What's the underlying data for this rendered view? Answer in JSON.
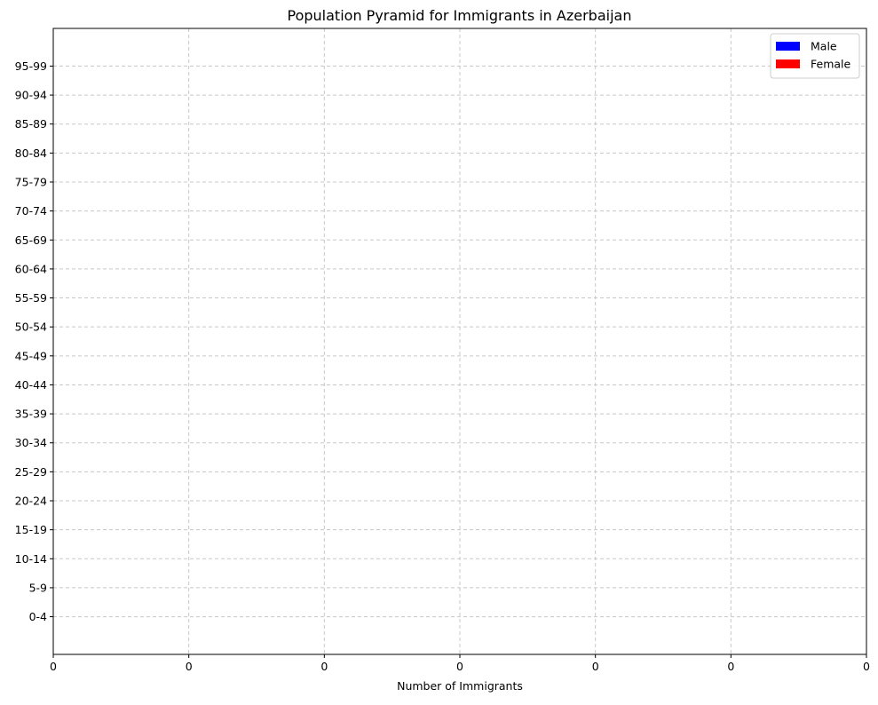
{
  "chart_data": {
    "type": "bar",
    "orientation": "horizontal",
    "title": "Population Pyramid for Immigrants in Azerbaijan",
    "xlabel": "Number of Immigrants",
    "ylabel": "",
    "categories": [
      "0-4",
      "5-9",
      "10-14",
      "15-19",
      "20-24",
      "25-29",
      "30-34",
      "35-39",
      "40-44",
      "45-49",
      "50-54",
      "55-59",
      "60-64",
      "65-69",
      "70-74",
      "75-79",
      "80-84",
      "85-89",
      "90-94",
      "95-99"
    ],
    "series": [
      {
        "name": "Male",
        "color": "#0000ff",
        "values": [
          0,
          0,
          0,
          0,
          0,
          0,
          0,
          0,
          0,
          0,
          0,
          0,
          0,
          0,
          0,
          0,
          0,
          0,
          0,
          0
        ]
      },
      {
        "name": "Female",
        "color": "#ff0000",
        "values": [
          0,
          0,
          0,
          0,
          0,
          0,
          0,
          0,
          0,
          0,
          0,
          0,
          0,
          0,
          0,
          0,
          0,
          0,
          0,
          0
        ]
      }
    ],
    "x_tick_labels": [
      "0",
      "0",
      "0",
      "0",
      "0",
      "0",
      "0"
    ],
    "xlim": [
      -3,
      3
    ],
    "grid": true,
    "legend_position": "top-right"
  }
}
